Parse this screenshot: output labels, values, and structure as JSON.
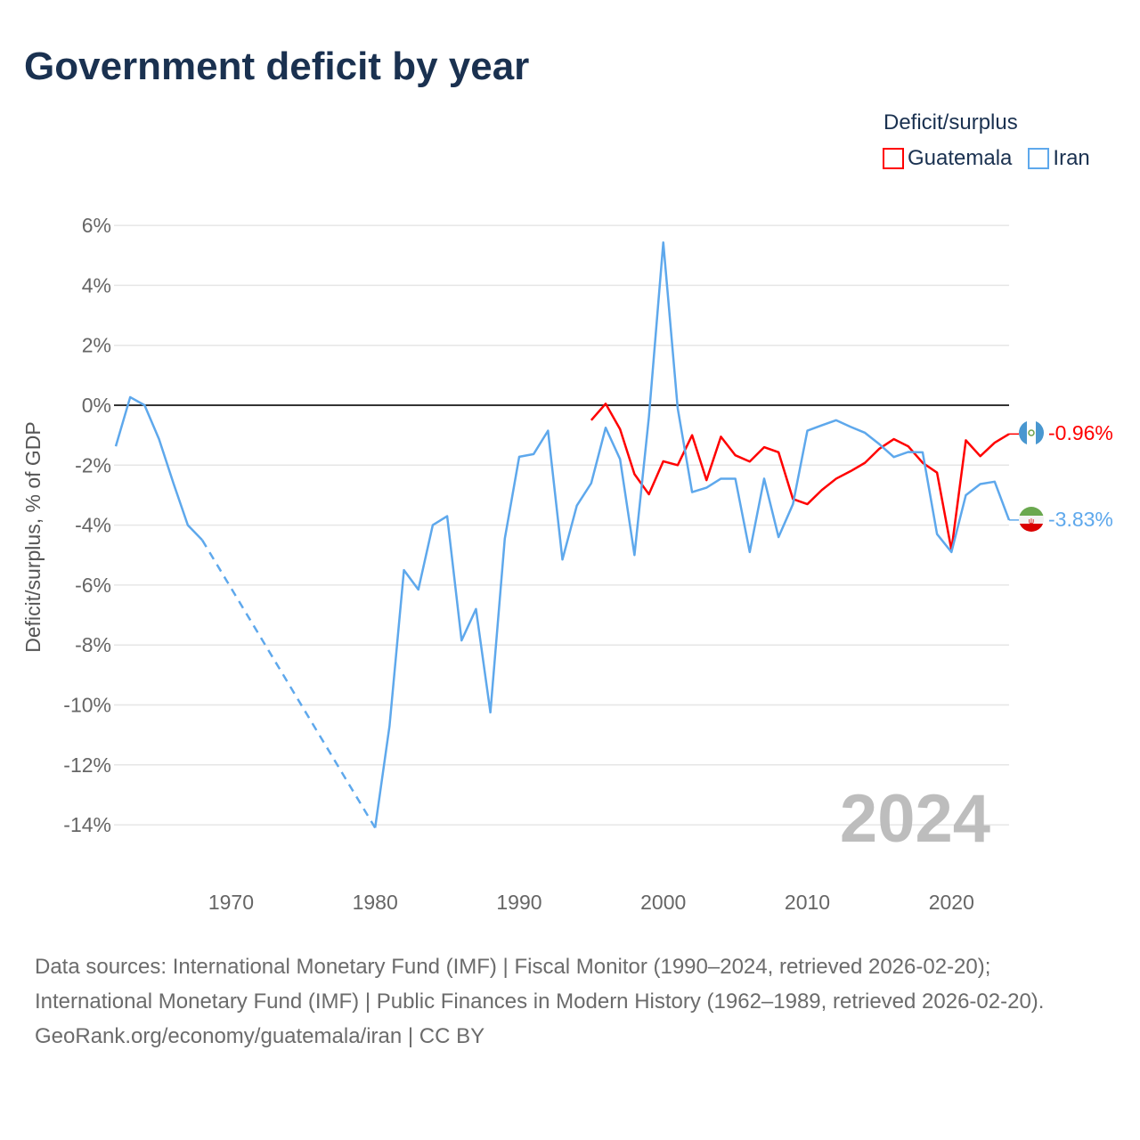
{
  "title": "Government deficit by year",
  "legend": {
    "title": "Deficit/surplus",
    "items": [
      {
        "name": "Guatemala",
        "color": "#ff0000"
      },
      {
        "name": "Iran",
        "color": "#5ea8ec"
      }
    ]
  },
  "year_watermark": "2024",
  "end_labels": {
    "guatemala": "-0.96%",
    "iran": "-3.83%"
  },
  "footer": {
    "sources": "Data sources: International Monetary Fund (IMF) | Fiscal Monitor (1990–2024, retrieved 2026-02-20); International Monetary Fund (IMF) | Public Finances in Modern History (1962–1989, retrieved 2026-02-20).",
    "credit": "GeoRank.org/economy/guatemala/iran | CC BY"
  },
  "chart_data": {
    "type": "line",
    "title": "Government deficit by year",
    "xlabel": "",
    "ylabel": "Deficit/surplus, % of GDP",
    "xlim": [
      1962,
      2024
    ],
    "ylim": [
      -15,
      6.5
    ],
    "x_ticks": [
      1970,
      1980,
      1990,
      2000,
      2010,
      2020
    ],
    "y_ticks": [
      6,
      4,
      2,
      0,
      -2,
      -4,
      -6,
      -8,
      -10,
      -12,
      -14
    ],
    "y_tick_labels": [
      "6%",
      "4%",
      "2%",
      "0%",
      "-2%",
      "-4%",
      "-6%",
      "-8%",
      "-10%",
      "-12%",
      "-14%"
    ],
    "grid": true,
    "legend_position": "top-right",
    "series": [
      {
        "name": "Guatemala",
        "color": "#ff0000",
        "start_year": 1995,
        "values": [
          -0.5,
          0.05,
          -0.8,
          -2.3,
          -2.97,
          -1.87,
          -2.0,
          -1.0,
          -2.5,
          -1.05,
          -1.67,
          -1.88,
          -1.4,
          -1.57,
          -3.13,
          -3.3,
          -2.83,
          -2.45,
          -2.2,
          -1.92,
          -1.45,
          -1.13,
          -1.37,
          -1.92,
          -2.25,
          -4.83,
          -1.17,
          -1.7,
          -1.25,
          -0.96
        ]
      },
      {
        "name": "Iran",
        "color": "#5ea8ec",
        "start_year": 1962,
        "values": [
          -1.37,
          0.27,
          0.0,
          -1.13,
          -2.6,
          -4.0,
          -4.5,
          null,
          null,
          null,
          null,
          null,
          null,
          null,
          null,
          null,
          null,
          null,
          -14.1,
          -10.7,
          -5.5,
          -6.15,
          -4.0,
          -3.7,
          -7.85,
          -6.8,
          -10.25,
          -4.45,
          -1.72,
          -1.63,
          -0.85,
          -5.15,
          -3.35,
          -2.6,
          -0.75,
          -1.8,
          -5.0,
          -0.4,
          5.43,
          -0.1,
          -2.9,
          -2.75,
          -2.45,
          -2.45,
          -4.9,
          -2.45,
          -4.4,
          -3.3,
          -0.85,
          -0.67,
          -0.5,
          -0.72,
          -0.92,
          -1.3,
          -1.73,
          -1.56,
          -1.57,
          -4.3,
          -4.9,
          -3.0,
          -2.63,
          -2.55,
          -3.83
        ]
      }
    ]
  }
}
